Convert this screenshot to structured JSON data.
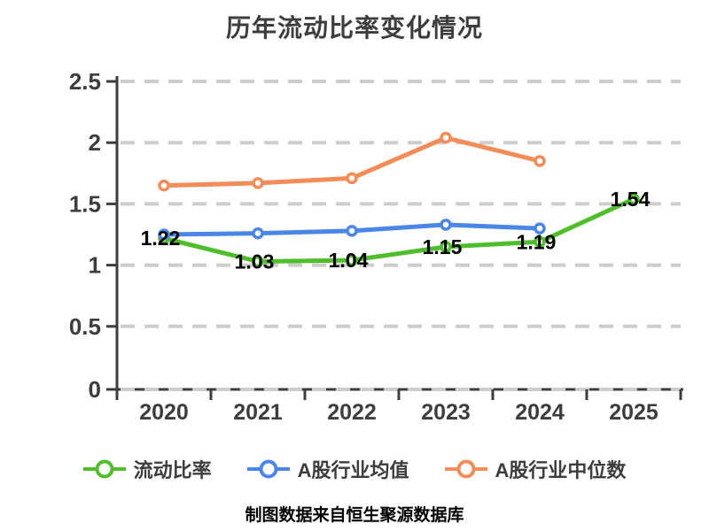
{
  "title": "历年流动比率变化情况",
  "footer_note": "制图数据来自恒生聚源数据库",
  "colors": {
    "background": "#ffffff",
    "axis": "#3d3d3d",
    "grid": "#cdcdcd",
    "tick_text": "#3d3d3d",
    "data_label": "#000000",
    "marker_fill": "#ffffff",
    "footer": "#bd8b3d",
    "series_green": "#4fbe2b",
    "series_blue": "#4a86e8",
    "series_orange": "#f48c58"
  },
  "chart_data": {
    "type": "line",
    "title": "历年流动比率变化情况",
    "categories": [
      "2020",
      "2021",
      "2022",
      "2023",
      "2024",
      "2025"
    ],
    "series": [
      {
        "name": "流动比率",
        "color": "#4fbe2b",
        "values": [
          1.22,
          1.03,
          1.04,
          1.15,
          1.19,
          1.54
        ],
        "data_labels": true
      },
      {
        "name": "A股行业均值",
        "color": "#4a86e8",
        "values": [
          1.25,
          1.26,
          1.28,
          1.33,
          1.3,
          null
        ],
        "data_labels": false
      },
      {
        "name": "A股行业中位数",
        "color": "#f48c58",
        "values": [
          1.65,
          1.67,
          1.71,
          2.04,
          1.85,
          null
        ],
        "data_labels": false
      }
    ],
    "ylim": [
      0,
      2.5
    ],
    "yticks": [
      0,
      0.5,
      1,
      1.5,
      2,
      2.5
    ],
    "grid": "horizontal-dashed",
    "legend_position": "bottom"
  },
  "legend": {
    "marker_style": "line-through-circle"
  }
}
